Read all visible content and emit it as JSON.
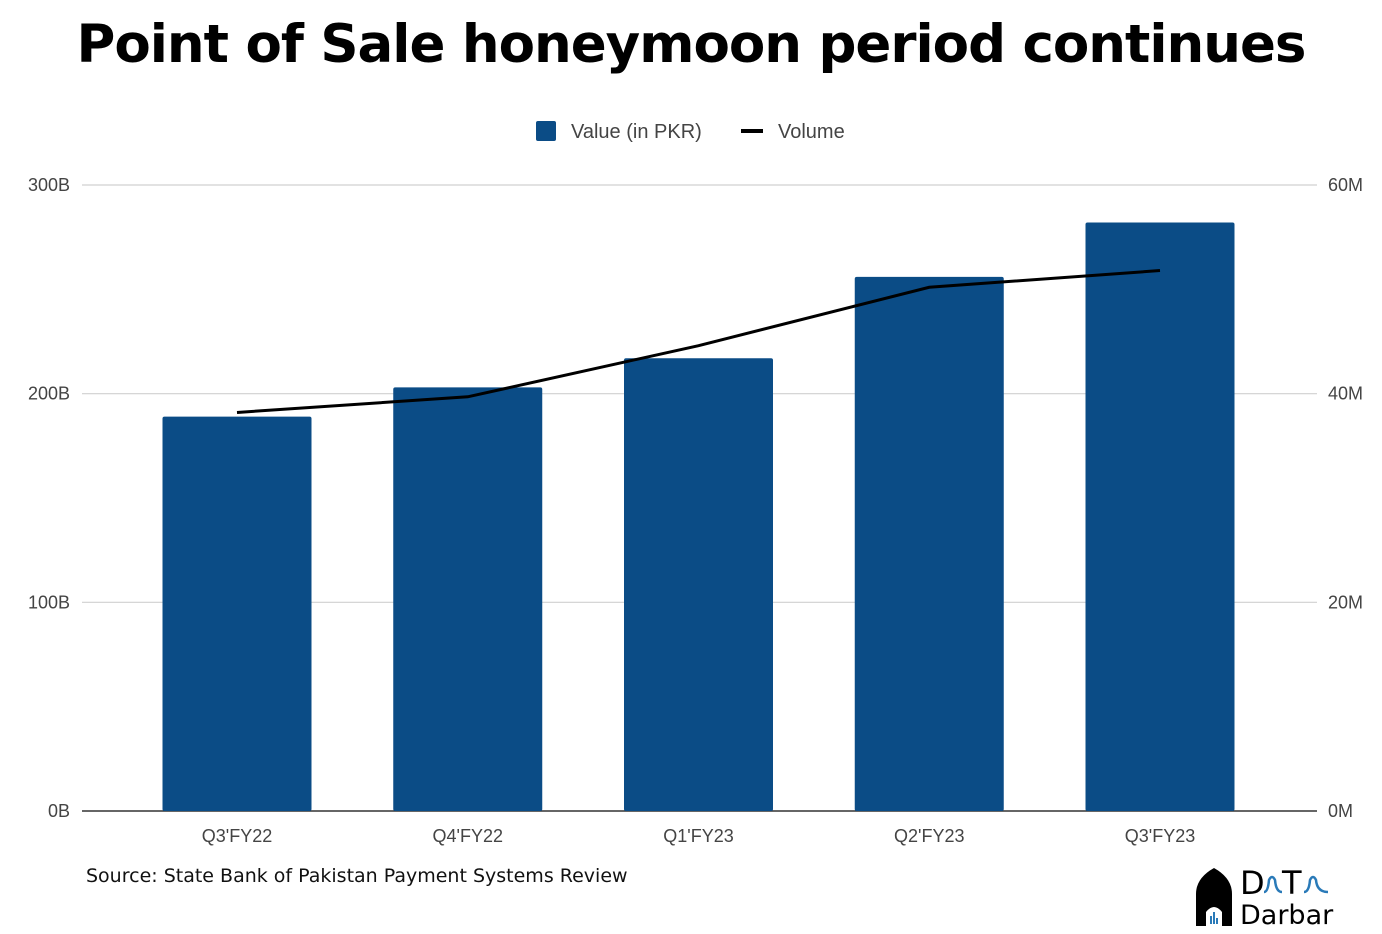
{
  "chart_data": {
    "type": "bar",
    "title": "Point of Sale honeymoon period continues",
    "categories": [
      "Q3'FY22",
      "Q4'FY22",
      "Q1'FY23",
      "Q2'FY23",
      "Q3'FY23"
    ],
    "series": [
      {
        "name": "Value (in PKR)",
        "type": "bar",
        "axis": "left",
        "color": "#0b4c86",
        "values": [
          189,
          203,
          217,
          256,
          282
        ]
      },
      {
        "name": "Volume",
        "type": "line",
        "axis": "right",
        "color": "#000000",
        "values": [
          38.2,
          39.7,
          44.6,
          50.2,
          51.8
        ]
      }
    ],
    "y_left": {
      "range": [
        0,
        300
      ],
      "ticks": [
        "0B",
        "100B",
        "200B",
        "300B"
      ]
    },
    "y_right": {
      "range": [
        0,
        60
      ],
      "ticks": [
        "0M",
        "20M",
        "40M",
        "60M"
      ]
    },
    "grid": true,
    "legend": "top-center"
  },
  "source": "Source: State Bank of Pakistan Payment Systems Review",
  "logo": {
    "text": "Data Darbar"
  }
}
